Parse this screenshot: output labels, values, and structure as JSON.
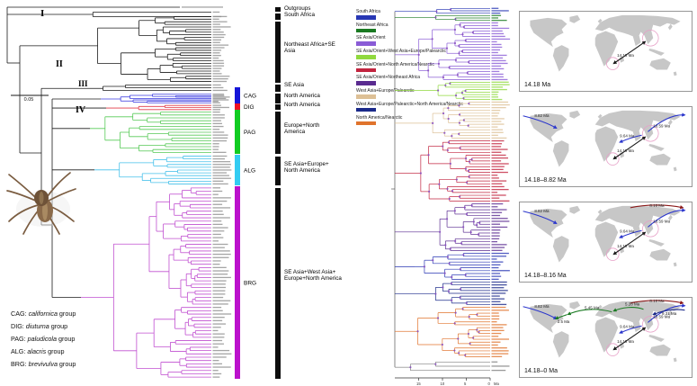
{
  "left_panel": {
    "scale_bar_label": "0.05",
    "clade_numerals": [
      "I",
      "II",
      "III",
      "IV"
    ],
    "groups": [
      {
        "abbr": "CAG",
        "name": "californica",
        "color": "#1515d8",
        "branch_color": "#3a3ae0"
      },
      {
        "abbr": "DIG",
        "name": "diuturna",
        "color": "#ee1122",
        "branch_color": "#e03a48"
      },
      {
        "abbr": "PAG",
        "name": "paludicola",
        "color": "#11cc22",
        "branch_color": "#57c957"
      },
      {
        "abbr": "ALG",
        "name": "alacris",
        "color": "#33ccf2",
        "branch_color": "#45c0ea"
      },
      {
        "abbr": "BRG",
        "name": "brevivulva",
        "color": "#bb11cc",
        "branch_color": "#c04fd0"
      }
    ],
    "group_suffix": "group",
    "legend_separator": ": ",
    "region_labels": [
      {
        "lines": [
          "Outgroups",
          "South Africa"
        ]
      },
      {
        "lines": [
          "Northeast Africa+SE",
          "Asia"
        ]
      },
      {
        "lines": [
          "SE Asia"
        ]
      },
      {
        "lines": [
          "North America"
        ]
      },
      {
        "lines": [
          "North America"
        ]
      },
      {
        "lines": [
          "Europe+North",
          "America"
        ]
      },
      {
        "lines": [
          "SE Asia+Europe+",
          "North America"
        ]
      },
      {
        "lines": [
          "SE Asia+West Asia+",
          "Europe+North America"
        ]
      }
    ]
  },
  "right_panel": {
    "area_legend": [
      {
        "label": "South Africa",
        "color": "#2837b4"
      },
      {
        "label": "Northeast Africa",
        "color": "#1a7a22"
      },
      {
        "label": "SE Asia/Orient",
        "color": "#8a5cd6"
      },
      {
        "label": "SE Asia/Orient+West Asia+Europe/Palearctic",
        "color": "#90d93e"
      },
      {
        "label": "SE Asia/Orient+North America/Nearctic",
        "color": "#c2243f"
      },
      {
        "label": "SE Asia/Orient+Northeast Africa",
        "color": "#5a2b90"
      },
      {
        "label": "West Asia+Europe/Palearctic",
        "color": "#ddc096"
      },
      {
        "label": "West Asia+Europe/Palearctic+North America/Nearctic",
        "color": "#1b2a8a"
      },
      {
        "label": "North America/Nearctic",
        "color": "#e0732c"
      }
    ],
    "time_axis": {
      "ticks": [
        "15",
        "10",
        "5",
        "0"
      ],
      "unit": "Ma"
    },
    "maps": [
      {
        "caption": "14.18 Ma",
        "routes": [
          {
            "id": "sea_to_safrica",
            "color": "#1a1a1a",
            "label": "14.18 Ma",
            "double": true
          }
        ]
      },
      {
        "caption": "14.18–8.82 Ma",
        "routes": [
          {
            "id": "sea_to_safrica",
            "color": "#1a1a1a",
            "label": "14.18 Ma",
            "double": true
          },
          {
            "id": "sea_to_neafrica",
            "color": "#2a35cc",
            "label": "9.64 Ma"
          },
          {
            "id": "sea_to_bering",
            "color": "#2a35cc",
            "label": "10.59 Ma"
          },
          {
            "id": "bering_to_namerica",
            "color": "#2a35cc",
            "label": "8.82 Ma"
          }
        ]
      },
      {
        "caption": "14.18–8.16 Ma",
        "routes": [
          {
            "id": "sea_to_safrica",
            "color": "#1a1a1a",
            "label": "14.18 Ma",
            "double": true
          },
          {
            "id": "sea_to_neafrica",
            "color": "#2a35cc",
            "label": "9.64 Ma"
          },
          {
            "id": "sea_to_bering",
            "color": "#2a35cc",
            "label": "10.59 Ma"
          },
          {
            "id": "bering_to_namerica",
            "color": "#2a35cc",
            "label": "8.82 Ma"
          },
          {
            "id": "asia_bering_north",
            "color": "#8b1a1a",
            "label": "8.16 Ma"
          }
        ]
      },
      {
        "caption": "14.18–0 Ma",
        "routes": [
          {
            "id": "sea_to_safrica",
            "color": "#1a1a1a",
            "label": "14.18 Ma",
            "double": true
          },
          {
            "id": "sea_to_neafrica",
            "color": "#2a35cc",
            "label": "9.64 Ma"
          },
          {
            "id": "sea_to_bering",
            "color": "#2a35cc",
            "label": "10.59 Ma"
          },
          {
            "id": "bering_to_namerica",
            "color": "#2a35cc",
            "label": "8.82 Ma"
          },
          {
            "id": "asia_bering_north",
            "color": "#8b1a1a",
            "label": "8.16 Ma"
          },
          {
            "id": "bering_to_westasia",
            "color": "#1b2a8a",
            "label": "9.31 Ma"
          },
          {
            "id": "asia_to_europe",
            "color": "#1a7a22",
            "label": "5.28 Ma"
          },
          {
            "id": "europe_to_atlantic",
            "color": "#1a7a22",
            "label": "5.45 Ma"
          },
          {
            "id": "atlantic_to_namerica",
            "color": "#1a7a22",
            "label": "2.5 Ma"
          }
        ]
      }
    ]
  }
}
